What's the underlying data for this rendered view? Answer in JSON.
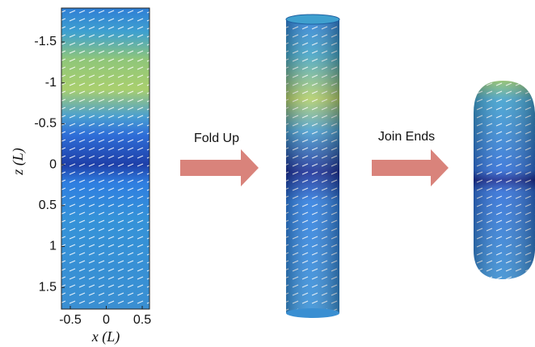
{
  "panel": {
    "x_label": "x (L)",
    "y_label": "z (L)",
    "x_ticks": [
      "-0.5",
      "0",
      "0.5"
    ],
    "y_ticks": [
      "-1.5",
      "-1",
      "-0.5",
      "0",
      "0.5",
      "1",
      "1.5"
    ]
  },
  "steps": [
    {
      "label": "Fold Up"
    },
    {
      "label": "Join Ends"
    }
  ]
}
